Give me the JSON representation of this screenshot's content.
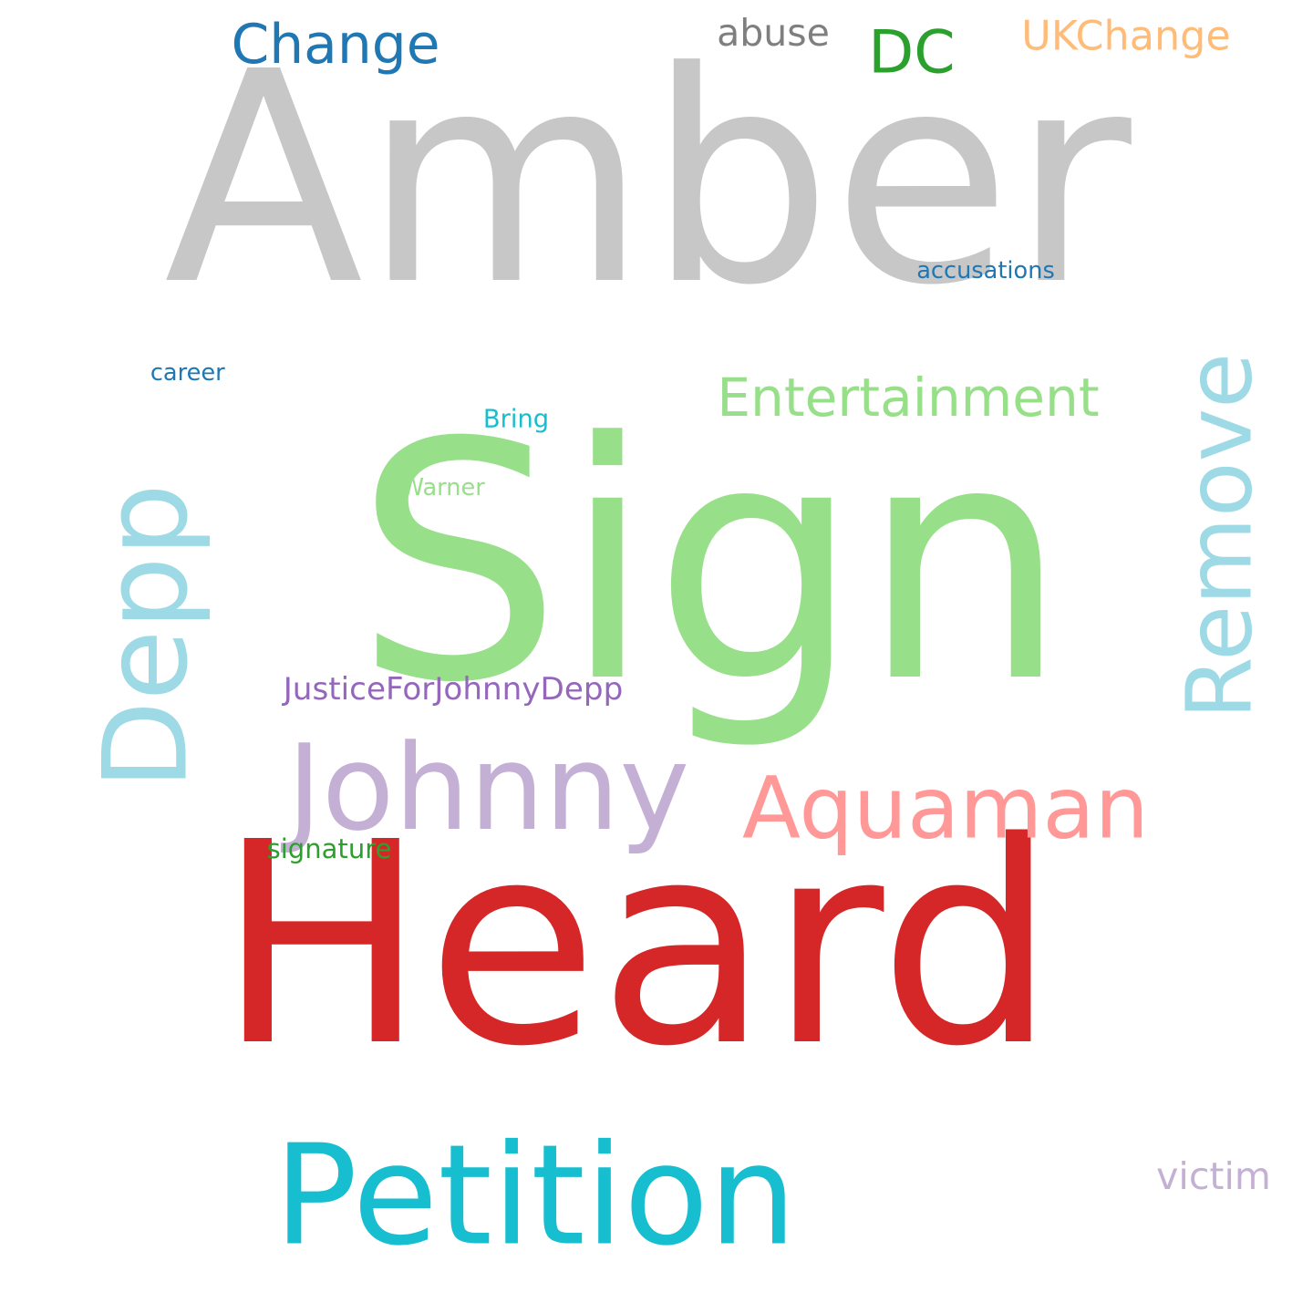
{
  "words": [
    {
      "id": "amber",
      "text": "Amber",
      "color": "#c7c7c7"
    },
    {
      "id": "sign",
      "text": "Sign",
      "color": "#98df8a"
    },
    {
      "id": "heard",
      "text": "Heard",
      "color": "#d62728"
    },
    {
      "id": "petition",
      "text": "Petition",
      "color": "#17becf"
    },
    {
      "id": "johnny",
      "text": "Johnny",
      "color": "#c5b0d5"
    },
    {
      "id": "depp",
      "text": "Depp",
      "color": "#9edae5"
    },
    {
      "id": "remove",
      "text": "Remove",
      "color": "#9edae5"
    },
    {
      "id": "entertainment",
      "text": "Entertainment",
      "color": "#98df8a"
    },
    {
      "id": "aquaman",
      "text": "Aquaman",
      "color": "#ff9896"
    },
    {
      "id": "change",
      "text": "Change",
      "color": "#1f77b4"
    },
    {
      "id": "dc",
      "text": "DC",
      "color": "#2ca02c"
    },
    {
      "id": "abuse",
      "text": "abuse",
      "color": "#7f7f7f"
    },
    {
      "id": "ukchange",
      "text": "UKChange",
      "color": "#ffbb78"
    },
    {
      "id": "accusations",
      "text": "accusations",
      "color": "#1f77b4"
    },
    {
      "id": "career",
      "text": "career",
      "color": "#1f77b4"
    },
    {
      "id": "bring",
      "text": "Bring",
      "color": "#17becf"
    },
    {
      "id": "warner",
      "text": "Warner",
      "color": "#98df8a"
    },
    {
      "id": "justice",
      "text": "JusticeForJohnnyDepp",
      "color": "#9467bd"
    },
    {
      "id": "signature",
      "text": "signature",
      "color": "#2ca02c"
    },
    {
      "id": "victim",
      "text": "victim",
      "color": "#c5b0d5"
    }
  ]
}
